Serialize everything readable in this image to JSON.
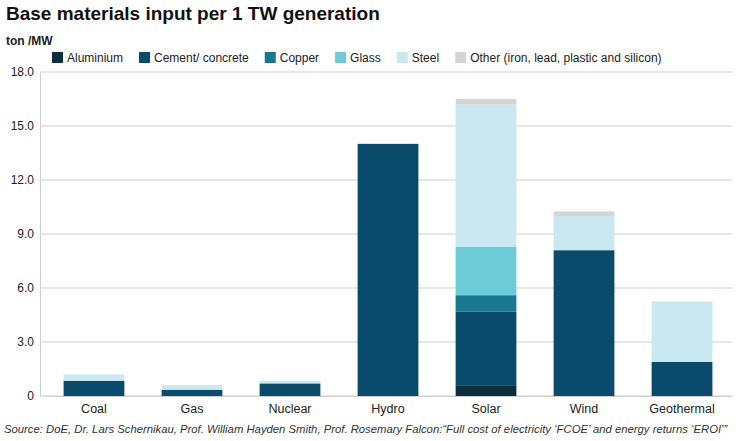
{
  "chart_data": {
    "type": "bar",
    "title": "Base materials input per 1 TW generation",
    "y_label": "ton /MW",
    "source": "Source: DoE, Dr. Lars Schernikau, Prof. William Hayden Smith, Prof. Rosemary Falcon:“Full cost of electricity ‘FCOE’ and energy returns ‘EROI’”",
    "categories": [
      "Coal",
      "Gas",
      "Nuclear",
      "Hydro",
      "Solar",
      "Wind",
      "Geothermal"
    ],
    "series": [
      {
        "name": "Aluminium",
        "color": "#0b2f3d",
        "values": [
          0,
          0,
          0,
          0,
          0.6,
          0,
          0
        ]
      },
      {
        "name": "Cement/ concrete",
        "color": "#0a4a6b",
        "values": [
          0.85,
          0.35,
          0.7,
          14.0,
          4.1,
          8.1,
          1.9
        ]
      },
      {
        "name": "Copper",
        "color": "#17788f",
        "values": [
          0,
          0,
          0,
          0,
          0.9,
          0,
          0
        ]
      },
      {
        "name": "Glass",
        "color": "#6ccbd6",
        "values": [
          0,
          0,
          0,
          0,
          2.7,
          0,
          0
        ]
      },
      {
        "name": "Steel",
        "color": "#c9e8f0",
        "values": [
          0.35,
          0.25,
          0.15,
          0.05,
          7.9,
          1.9,
          3.35
        ]
      },
      {
        "name": "Other (iron, lead, plastic and silicon)",
        "color": "#d4d4d4",
        "values": [
          0,
          0,
          0,
          0,
          0.3,
          0.25,
          0
        ]
      }
    ],
    "ylim": [
      0,
      18
    ],
    "yticks": [
      0,
      {
        "value": 3,
        "label": "3.0"
      },
      {
        "value": 6,
        "label": "6.0"
      },
      {
        "value": 9,
        "label": "9.0"
      },
      {
        "value": 12,
        "label": "12.0"
      },
      {
        "value": 15,
        "label": "15.0"
      },
      {
        "value": 18,
        "label": "18.0"
      }
    ],
    "stacked": true,
    "grid": true,
    "legend": "top"
  }
}
